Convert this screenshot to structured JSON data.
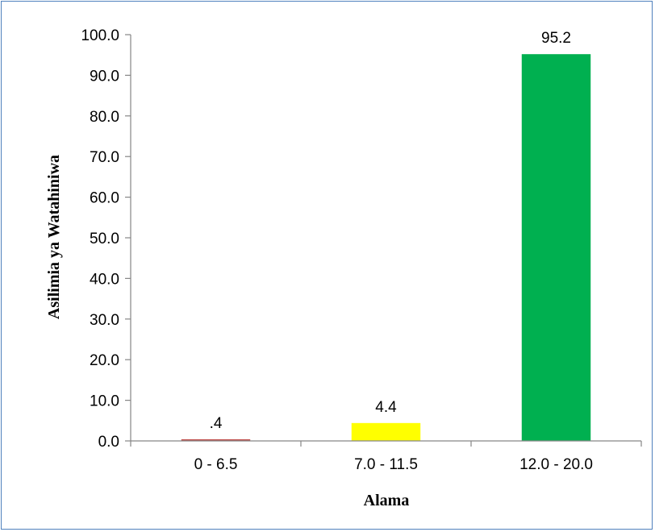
{
  "chart_data": {
    "type": "bar",
    "categories": [
      "0 - 6.5",
      "7.0 - 11.5",
      "12.0 - 20.0"
    ],
    "values": [
      0.4,
      4.4,
      95.2
    ],
    "data_labels": [
      ".4",
      "4.4",
      "95.2"
    ],
    "colors": [
      "#c0504d",
      "#ffff00",
      "#00b050"
    ],
    "xlabel": "Alama",
    "ylabel": "Asilimia ya Watahiniwa",
    "ylim": [
      0,
      100
    ],
    "yticks": [
      0,
      10,
      20,
      30,
      40,
      50,
      60,
      70,
      80,
      90,
      100
    ],
    "ytick_labels": [
      "0.0",
      "10.0",
      "20.0",
      "30.0",
      "40.0",
      "50.0",
      "60.0",
      "70.0",
      "80.0",
      "90.0",
      "100.0"
    ],
    "grid": false,
    "legend": "none",
    "frame_color": "#4f81bd",
    "axis_color": "#868686"
  }
}
